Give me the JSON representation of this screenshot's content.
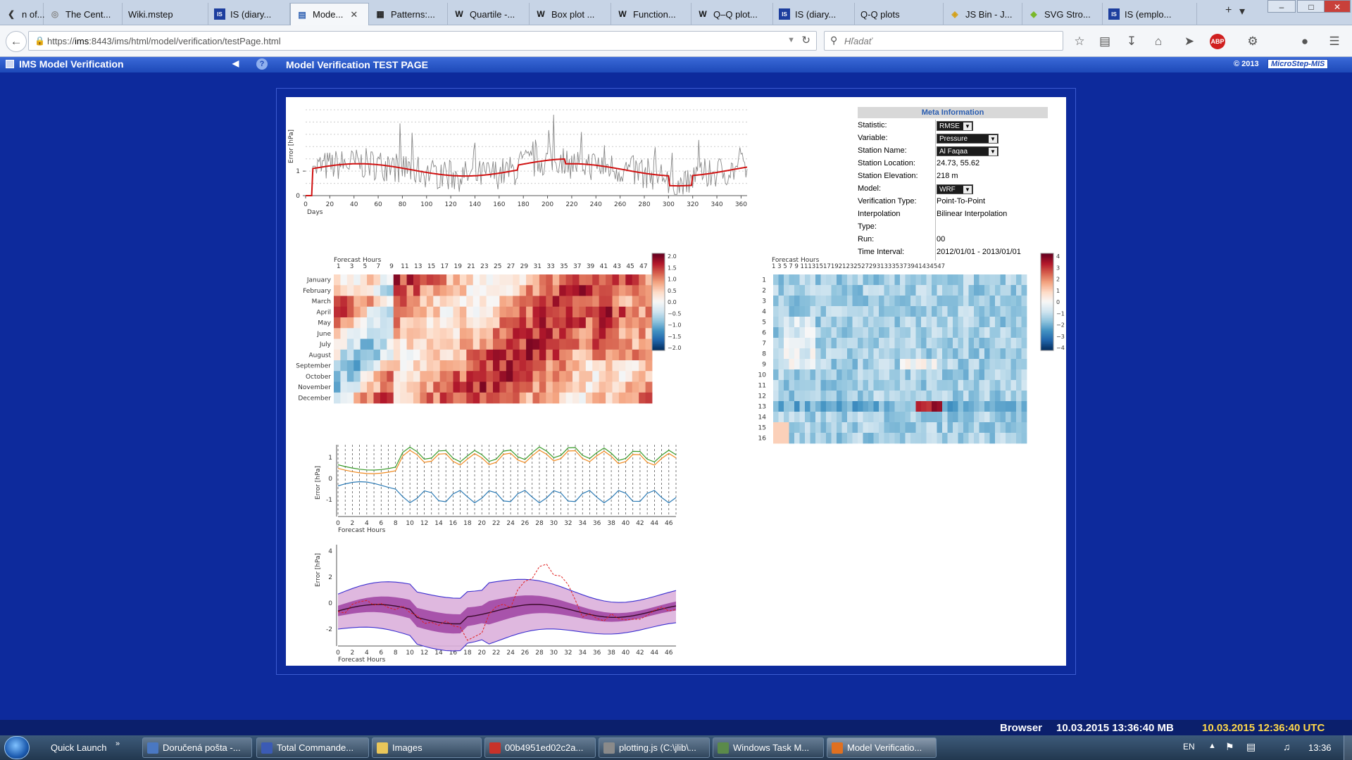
{
  "browser": {
    "tabs": [
      {
        "label": "n of...",
        "icon": "back-arrow-icon",
        "left": 0,
        "width": 62
      },
      {
        "label": "The Cent...",
        "icon": "globe-icon",
        "left": 62,
        "width": 112
      },
      {
        "label": "Wiki.mstep",
        "icon": "",
        "left": 174,
        "width": 122
      },
      {
        "label": "IS (diary...",
        "icon": "is-logo-icon",
        "left": 296,
        "width": 116
      },
      {
        "label": "Mode...",
        "icon": "page-icon",
        "left": 412,
        "width": 112,
        "active": true
      },
      {
        "label": "Patterns:...",
        "icon": "patterns-icon",
        "left": 524,
        "width": 112
      },
      {
        "label": "Quartile -...",
        "icon": "wikipedia-icon",
        "left": 636,
        "width": 116
      },
      {
        "label": "Box plot ...",
        "icon": "wikipedia-icon",
        "left": 752,
        "width": 116
      },
      {
        "label": "Function...",
        "icon": "wikipedia-icon",
        "left": 868,
        "width": 114
      },
      {
        "label": "Q–Q plot...",
        "icon": "wikipedia-icon",
        "left": 982,
        "width": 116
      },
      {
        "label": "IS (diary...",
        "icon": "is-logo-icon",
        "left": 1098,
        "width": 116
      },
      {
        "label": "Q-Q plots",
        "icon": "",
        "left": 1214,
        "width": 126
      },
      {
        "label": "JS Bin - J...",
        "icon": "jsbin-icon",
        "left": 1340,
        "width": 112
      },
      {
        "label": "SVG Stro...",
        "icon": "svg-icon",
        "left": 1452,
        "width": 114
      },
      {
        "label": "IS (emplo...",
        "icon": "is-logo-icon",
        "left": 1566,
        "width": 134
      }
    ],
    "url_prefix": "https://",
    "url_host": "ims",
    "url_rest": ":8443/ims/html/model/verification/testPage.html",
    "search_placeholder": "Hľadať"
  },
  "app": {
    "title": "IMS  Model Verification",
    "page_title": "Model Verification TEST PAGE",
    "copyright": "© 2013",
    "brand": "MicroStep-MIS"
  },
  "meta": {
    "header": "Meta Information",
    "rows": [
      {
        "key": "Statistic:",
        "value": "RMSE",
        "select": true
      },
      {
        "key": "Variable:",
        "value": "Pressure",
        "select": true
      },
      {
        "key": "Station Name:",
        "value": "Al Faqaa",
        "select": true
      },
      {
        "key": "Station Location:",
        "value": "24.73, 55.62"
      },
      {
        "key": "Station Elevation:",
        "value": "218 m"
      },
      {
        "key": "Model:",
        "value": "WRF",
        "select": true
      },
      {
        "key": "Verification Type:",
        "value": "Point-To-Point"
      },
      {
        "key": "Interpolation",
        "value": "Bilinear Interpolation"
      },
      {
        "key": "Type:",
        "value": ""
      },
      {
        "key": "Run:",
        "value": "00"
      },
      {
        "key": "Time Interval:",
        "value": "2012/01/01 - 2013/01/01"
      }
    ]
  },
  "chart_data": [
    {
      "type": "line",
      "title": "",
      "xlabel": "Days",
      "ylabel": "Error [hPa]",
      "xlim": [
        0,
        365
      ],
      "ylim": [
        0,
        3.5
      ],
      "x_ticks": [
        0,
        20,
        40,
        60,
        80,
        100,
        120,
        140,
        160,
        180,
        200,
        220,
        240,
        260,
        280,
        300,
        320,
        340,
        360
      ],
      "y_ticks": [
        0,
        1
      ],
      "series": [
        {
          "name": "",
          "role": "daily",
          "color": "#888888"
        },
        {
          "name": "",
          "role": "smoothed",
          "color": "#d01010"
        }
      ]
    },
    {
      "type": "heatmap",
      "xlabel": "Forecast Hours",
      "x_ticks": [
        "1",
        "3",
        "5",
        "7",
        "9",
        "11",
        "13",
        "15",
        "17",
        "19",
        "21",
        "23",
        "25",
        "27",
        "29",
        "31",
        "33",
        "35",
        "37",
        "39",
        "41",
        "43",
        "45",
        "47"
      ],
      "rows": [
        "January",
        "February",
        "March",
        "April",
        "May",
        "June",
        "July",
        "August",
        "September",
        "October",
        "November",
        "December"
      ],
      "colorbar_ticks": [
        "2.0",
        "1.5",
        "1.0",
        "0.5",
        "0.0",
        "−0.5",
        "−1.0",
        "−1.5",
        "−2.0"
      ]
    },
    {
      "type": "heatmap",
      "xlabel": "Forecast Hours",
      "x_label_text": "1  3  5  7  9 11131517192123252729313335373941434547",
      "rows": [
        "1",
        "2",
        "3",
        "4",
        "5",
        "6",
        "7",
        "8",
        "9",
        "10",
        "11",
        "12",
        "13",
        "14",
        "15",
        "16"
      ],
      "colorbar_ticks": [
        "4",
        "3",
        "2",
        "1",
        "0",
        "−1",
        "−2",
        "−3",
        "−4"
      ]
    },
    {
      "type": "line",
      "xlabel": "Forecast Hours",
      "ylabel": "Error [hPa]",
      "x_ticks": [
        0,
        2,
        4,
        6,
        8,
        10,
        12,
        14,
        16,
        18,
        20,
        22,
        24,
        26,
        28,
        30,
        32,
        34,
        36,
        38,
        40,
        42,
        44,
        46
      ],
      "y_ticks": [
        1,
        0,
        -1
      ],
      "series": [
        {
          "name": "",
          "color": "#3a9b2a"
        },
        {
          "name": "",
          "color": "#f08a20"
        },
        {
          "name": "",
          "color": "#2a7ab5"
        }
      ]
    },
    {
      "type": "area",
      "xlabel": "Forecast Hours",
      "ylabel": "Error [hPa]",
      "x_ticks": [
        0,
        2,
        4,
        6,
        8,
        10,
        12,
        14,
        16,
        18,
        20,
        22,
        24,
        26,
        28,
        30,
        32,
        34,
        36,
        38,
        40,
        42,
        44,
        46
      ],
      "y_ticks": [
        4,
        2,
        0,
        -2
      ]
    }
  ],
  "status": {
    "browser_label": "Browser",
    "local_time": "10.03.2015 13:36:40 MB",
    "utc_time": "10.03.2015 12:36:40 UTC"
  },
  "taskbar": {
    "quick_launch": "Quick Launch",
    "items": [
      {
        "label": "Doručená pošta -...",
        "color": "#4a78c2",
        "left": 202,
        "width": 156
      },
      {
        "label": "Total Commande...",
        "color": "#3b5bb5",
        "left": 364,
        "width": 160
      },
      {
        "label": "Images",
        "color": "#e9c65a",
        "left": 528,
        "width": 156
      },
      {
        "label": "00b4951ed02c2a...",
        "color": "#c8322a",
        "left": 688,
        "width": 158
      },
      {
        "label": "plotting.js (C:\\jlib\\...",
        "color": "#8a8a8a",
        "left": 850,
        "width": 158
      },
      {
        "label": "Windows Task M...",
        "color": "#5b8a4a",
        "left": 1012,
        "width": 158
      },
      {
        "label": "Model Verificatio...",
        "color": "#e07020",
        "left": 1174,
        "width": 156
      }
    ],
    "lang": "EN",
    "clock": "13:36"
  }
}
